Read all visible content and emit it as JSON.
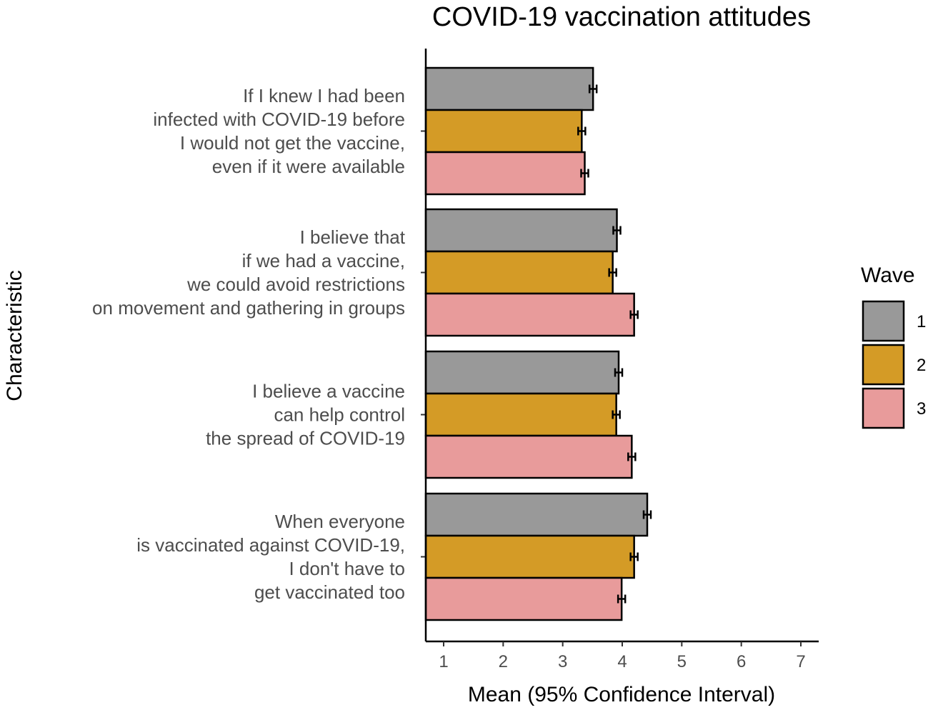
{
  "chart_data": {
    "type": "bar",
    "orientation": "horizontal",
    "title": "COVID-19 vaccination attitudes",
    "xlabel": "Mean (95% Confidence Interval)",
    "ylabel": "Characteristic",
    "xlim": [
      0.7,
      7.3
    ],
    "xticks": [
      1,
      2,
      3,
      4,
      5,
      6,
      7
    ],
    "grid": false,
    "legend": {
      "title": "Wave",
      "position": "right"
    },
    "categories": [
      [
        "If I knew I had been",
        "infected with COVID-19 before",
        "I would not get the vaccine,",
        "even if it were available"
      ],
      [
        "I believe that",
        "if we had a vaccine,",
        "we could avoid restrictions",
        "on movement and gathering in groups"
      ],
      [
        "I believe a vaccine",
        "can help  control",
        "the spread of COVID-19"
      ],
      [
        "When everyone",
        "is vaccinated against COVID-19,",
        "I don't have to",
        "get vaccinated too"
      ]
    ],
    "series": [
      {
        "name": "1",
        "color": "#999999",
        "values": [
          3.51,
          3.91,
          3.94,
          4.42
        ],
        "ci_low": [
          3.45,
          3.85,
          3.88,
          4.36
        ],
        "ci_high": [
          3.57,
          3.97,
          4.0,
          4.48
        ]
      },
      {
        "name": "2",
        "color": "#D49B26",
        "values": [
          3.32,
          3.84,
          3.9,
          4.2
        ],
        "ci_low": [
          3.26,
          3.78,
          3.84,
          4.14
        ],
        "ci_high": [
          3.38,
          3.9,
          3.96,
          4.26
        ]
      },
      {
        "name": "3",
        "color": "#E89B9B",
        "values": [
          3.37,
          4.2,
          4.16,
          3.99
        ],
        "ci_low": [
          3.31,
          4.14,
          4.1,
          3.93
        ],
        "ci_high": [
          3.43,
          4.26,
          4.22,
          4.05
        ]
      }
    ]
  }
}
